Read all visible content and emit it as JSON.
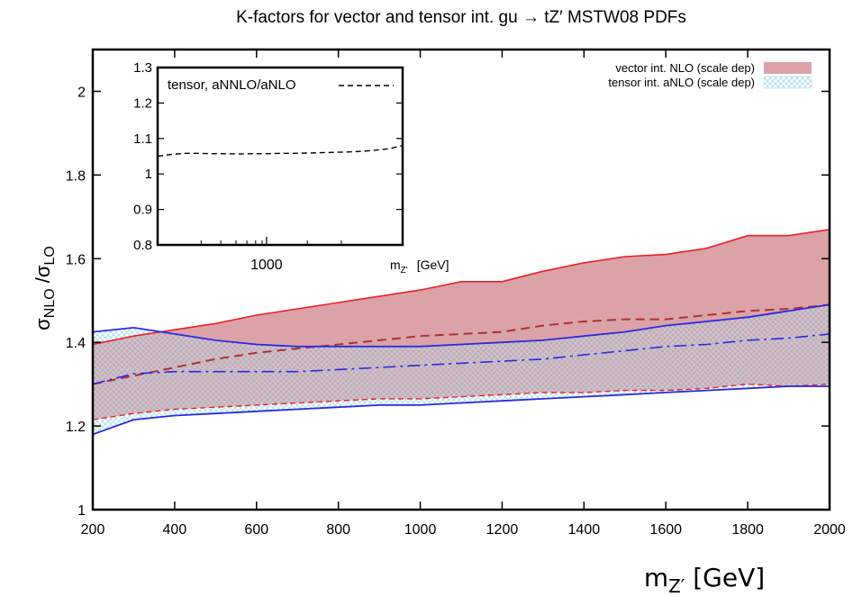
{
  "chart_data": {
    "type": "area",
    "title": "K-factors for vector and tensor int. gu → tZ′  MSTW08 PDFs",
    "ylabel_main": "σ",
    "ylabel_num_sub": "NLO",
    "ylabel_sep": " /σ",
    "ylabel_den_sub": "LO",
    "xlabel_main": "m",
    "xlabel_sub": "Z′",
    "xlabel_unit": " [GeV]",
    "xlim": [
      200,
      2000
    ],
    "ylim": [
      1,
      2.1
    ],
    "x_ticks": [
      200,
      400,
      600,
      800,
      1000,
      1200,
      1400,
      1600,
      1800,
      2000
    ],
    "y_ticks": [
      1,
      1.2,
      1.4,
      1.6,
      1.8,
      2
    ],
    "colors": {
      "vector_band": "#dba3a8",
      "vector_line": "#e8202a",
      "vector_central": "#b03030",
      "tensor_line": "#2a2ae0",
      "tensor_hatch": "#a8dcec"
    },
    "series": [
      {
        "name": "vector int. NLO (scale dep)",
        "style": "band",
        "x": [
          200,
          300,
          400,
          500,
          600,
          700,
          800,
          900,
          1000,
          1100,
          1200,
          1300,
          1400,
          1500,
          1600,
          1700,
          1800,
          1900,
          2000
        ],
        "upper": [
          1.395,
          1.415,
          1.43,
          1.445,
          1.465,
          1.48,
          1.495,
          1.51,
          1.525,
          1.545,
          1.545,
          1.57,
          1.59,
          1.605,
          1.61,
          1.625,
          1.655,
          1.655,
          1.67
        ],
        "central": [
          1.3,
          1.32,
          1.34,
          1.36,
          1.375,
          1.385,
          1.395,
          1.405,
          1.415,
          1.42,
          1.425,
          1.44,
          1.45,
          1.455,
          1.455,
          1.465,
          1.475,
          1.48,
          1.49
        ],
        "lower": [
          1.215,
          1.23,
          1.24,
          1.245,
          1.25,
          1.255,
          1.26,
          1.265,
          1.265,
          1.27,
          1.275,
          1.28,
          1.28,
          1.285,
          1.285,
          1.29,
          1.3,
          1.295,
          1.3
        ]
      },
      {
        "name": "tensor int. aNLO (scale dep)",
        "style": "hatched-band",
        "x": [
          200,
          300,
          400,
          500,
          600,
          700,
          800,
          900,
          1000,
          1100,
          1200,
          1300,
          1400,
          1500,
          1600,
          1700,
          1800,
          1900,
          2000
        ],
        "upper": [
          1.425,
          1.435,
          1.42,
          1.405,
          1.395,
          1.39,
          1.39,
          1.39,
          1.39,
          1.395,
          1.4,
          1.405,
          1.415,
          1.425,
          1.44,
          1.45,
          1.46,
          1.475,
          1.49
        ],
        "central": [
          1.3,
          1.325,
          1.33,
          1.33,
          1.33,
          1.33,
          1.335,
          1.34,
          1.345,
          1.35,
          1.355,
          1.36,
          1.37,
          1.38,
          1.39,
          1.395,
          1.405,
          1.41,
          1.42
        ],
        "lower": [
          1.18,
          1.215,
          1.225,
          1.23,
          1.235,
          1.24,
          1.245,
          1.25,
          1.25,
          1.255,
          1.26,
          1.265,
          1.27,
          1.275,
          1.28,
          1.285,
          1.29,
          1.295,
          1.295
        ]
      }
    ],
    "inset": {
      "ylim": [
        0.8,
        1.3
      ],
      "y_ticks": [
        "0.8",
        "0.9",
        "1",
        "1.1",
        "1.2",
        "1.3"
      ],
      "x_tick_label": "1000",
      "xlabel_main": "m",
      "xlabel_sub": "Z'",
      "xlabel_unit": "[GeV]",
      "series": [
        {
          "name": "tensor, aNNLO/aNLO",
          "x": [
            200,
            300,
            400,
            500,
            600,
            700,
            800,
            900,
            1000,
            1100,
            1200,
            1300,
            1400,
            1500,
            1600,
            1700,
            1800,
            1900,
            2000
          ],
          "y": [
            1.05,
            1.055,
            1.058,
            1.058,
            1.057,
            1.057,
            1.056,
            1.057,
            1.057,
            1.058,
            1.058,
            1.059,
            1.06,
            1.061,
            1.062,
            1.064,
            1.067,
            1.071,
            1.08
          ]
        }
      ]
    }
  }
}
